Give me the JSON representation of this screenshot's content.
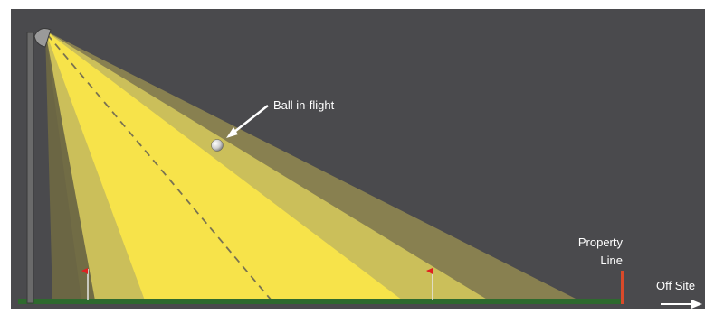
{
  "labels": {
    "ball": "Ball in-flight",
    "property_line": [
      "Property",
      "Line"
    ],
    "off_site": "Off Site"
  },
  "colors": {
    "background": "#4a4a4d",
    "ground": "#2e6a2e",
    "property_line": "#d94a2a",
    "beam_outer": "#8b8350",
    "beam_mid": "#cbbf5a",
    "beam_inner": "#f7e34a",
    "pole": "#6a6a6a"
  },
  "icons": [
    "light-fixture-icon",
    "golf-flag-icon",
    "arrow-right-icon",
    "golf-ball-icon"
  ]
}
